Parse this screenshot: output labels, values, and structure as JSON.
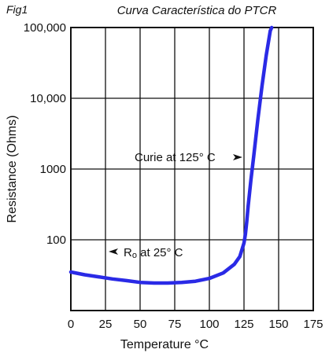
{
  "chart_data": {
    "type": "line",
    "fig_label": "Fig1",
    "title": "Curva Característica do PTCR",
    "xlabel": "Temperature °C",
    "ylabel": "Resistance (Ohms)",
    "xlim": [
      0,
      175
    ],
    "ylim": [
      10,
      100000
    ],
    "y_scale": "log",
    "grid": true,
    "x_ticks": [
      0,
      25,
      50,
      75,
      100,
      125,
      150,
      175
    ],
    "x_tick_labels": [
      "0",
      "25",
      "50",
      "75",
      "100",
      "125",
      "150",
      "175"
    ],
    "y_ticks": [
      100,
      1000,
      10000,
      100000
    ],
    "y_tick_labels": [
      "100",
      "1000",
      "10,000",
      "100,000"
    ],
    "series": [
      {
        "color": "#2a2ae6",
        "x": [
          0,
          10,
          20,
          30,
          40,
          50,
          60,
          70,
          80,
          90,
          100,
          110,
          118,
          122,
          125,
          126,
          127,
          128,
          130,
          132,
          135,
          138,
          141,
          144,
          145
        ],
        "y": [
          35,
          32,
          30,
          28,
          26.5,
          25,
          24.5,
          24.5,
          25,
          26,
          28.5,
          34,
          45,
          58,
          90,
          120,
          180,
          300,
          700,
          1500,
          5000,
          15000,
          40000,
          90000,
          110000
        ]
      }
    ],
    "annotations": [
      {
        "text": "Curie at 125° C",
        "arrow": "right",
        "x": 125,
        "y": 1400
      },
      {
        "text_main": "R",
        "text_sub": "o",
        "text_rest": " at 25° C",
        "arrow": "left",
        "x": 25,
        "y": 200
      }
    ]
  }
}
